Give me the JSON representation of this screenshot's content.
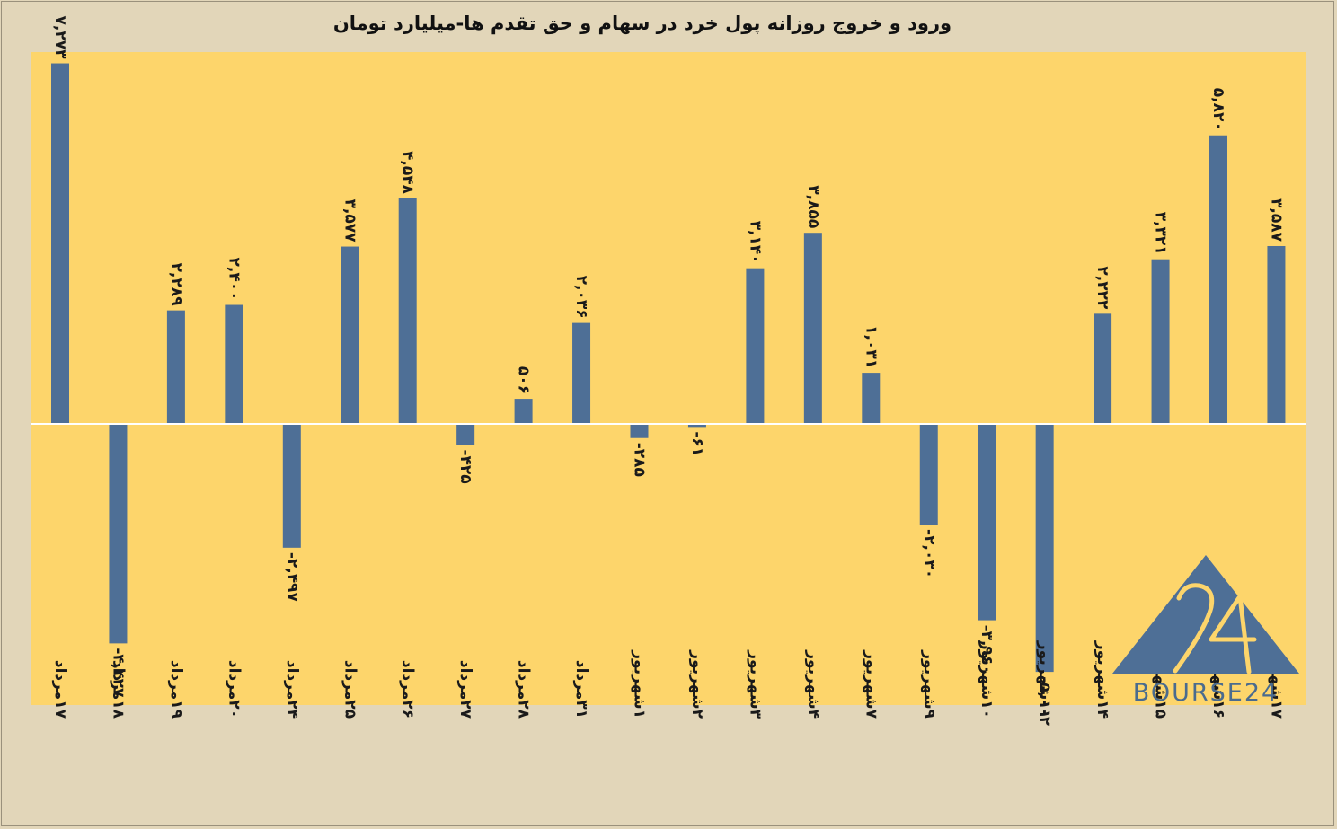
{
  "chart_data": {
    "type": "bar",
    "title": "ورود و خروج روزانه پول خرد در سهام و حق تقدم ها-میلیارد تومان",
    "xlabel": "",
    "ylabel": "",
    "ylim": [
      -5300,
      7500
    ],
    "grid": false,
    "legend": "none",
    "colors": {
      "bar": "#4e6f96",
      "plot_bg": "#fdd56b",
      "page_bg": "#e2d6b9",
      "zero_line": "#ffffff"
    },
    "categories": [
      "۱۷مرداد",
      "۱۸مرداد",
      "۱۹مرداد",
      "۲۰مرداد",
      "۲۴مرداد",
      "۲۵مرداد",
      "۲۶مرداد",
      "۲۷مرداد",
      "۲۸مرداد",
      "۳۱مرداد",
      "۱شهریور",
      "۲شهریور",
      "۳شهریور",
      "۴شهریور",
      "۷شهریور",
      "۹شهریور",
      "۱۰شهریور",
      "۱۱شهریور",
      "۱۴شهریور",
      "۱۵شهریور",
      "۱۶شهریور",
      "۱۷شهریور"
    ],
    "values": [
      7273,
      -4427,
      2289,
      2400,
      -2497,
      3577,
      4548,
      -425,
      506,
      2036,
      -285,
      -61,
      3140,
      3855,
      1031,
      -2030,
      -3960,
      -5002,
      2222,
      3321,
      5820,
      3587
    ],
    "value_labels": [
      "۷,۲۷۳",
      "-۴,۴۲۷",
      "۲,۲۸۹",
      "۲,۴۰۰",
      "-۲,۴۹۷",
      "۳,۵۷۷",
      "۴,۵۴۸",
      "-۴۲۵",
      "۵۰۶",
      "۲,۰۳۶",
      "-۲۸۵",
      "-۶۱",
      "۳,۱۴۰",
      "۳,۸۵۵",
      "۱,۰۳۱",
      "-۲,۰۳۰",
      "-۳,۹۶۰",
      "-۵,۰۰۲",
      "۲,۲۲۲",
      "۳,۳۲۱",
      "۵,۸۲۰",
      "۳,۵۸۷"
    ]
  },
  "logo": {
    "number": "24",
    "text": "BOURSE24"
  }
}
